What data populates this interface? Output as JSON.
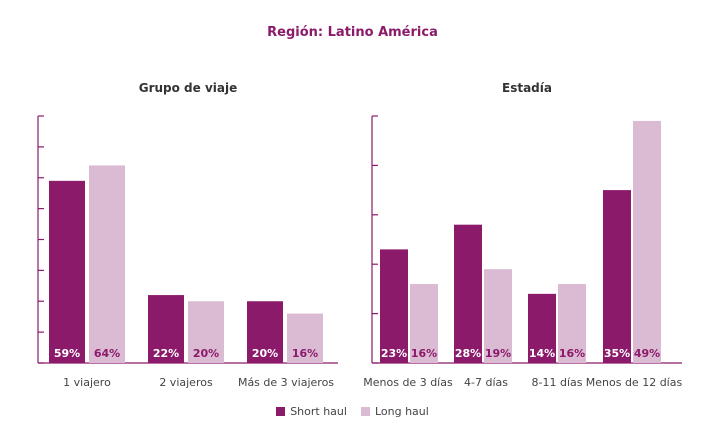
{
  "title": "Región: Latino América",
  "colors": {
    "short": "#8b1a6b",
    "long": "#dbbad3",
    "axis": "#8b1a6b",
    "label_on_short": "#ffffff",
    "label_on_long": "#8b1a6b"
  },
  "legend": {
    "short": "Short haul",
    "long": "Long haul"
  },
  "chart_data": [
    {
      "type": "bar",
      "title": "Grupo de viaje",
      "categories": [
        "1 viajero",
        "2 viajeros",
        "Más de 3 viajeros"
      ],
      "series": [
        {
          "name": "Short haul",
          "values": [
            59,
            22,
            20
          ],
          "labels": [
            "59%",
            "22%",
            "20%"
          ]
        },
        {
          "name": "Long haul",
          "values": [
            64,
            20,
            16
          ],
          "labels": [
            "64%",
            "20%",
            "16%"
          ]
        }
      ],
      "ylim": [
        0,
        80
      ]
    },
    {
      "type": "bar",
      "title": "Estadía",
      "categories": [
        "Menos de 3 días",
        "4-7 días",
        "8-11 días",
        "Menos de 12 días"
      ],
      "series": [
        {
          "name": "Short haul",
          "values": [
            23,
            28,
            14,
            35
          ],
          "labels": [
            "23%",
            "28%",
            "14%",
            "35%"
          ]
        },
        {
          "name": "Long haul",
          "values": [
            16,
            19,
            16,
            49
          ],
          "labels": [
            "16%",
            "19%",
            "16%",
            "49%"
          ]
        }
      ],
      "ylim": [
        0,
        50
      ]
    }
  ]
}
